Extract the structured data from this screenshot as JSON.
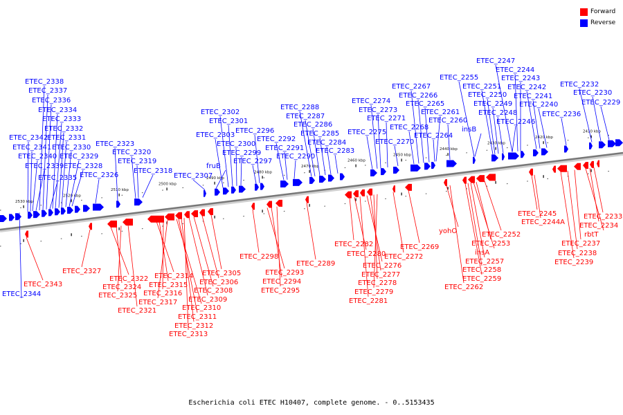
{
  "caption": "Escherichia coli ETEC H10407, complete genome. - 0..5153435",
  "legend": [
    {
      "label": "Forward",
      "color": "#ff0000"
    },
    {
      "label": "Reverse",
      "color": "#0000ff"
    }
  ],
  "colors": {
    "forward": "#ff0000",
    "reverse": "#0000ff",
    "backbone": "#888888"
  },
  "ticks": [
    "2530 kbp",
    "2520 kbp",
    "2510 kbp",
    "2500 kbp",
    "2490 kbp",
    "2480 kbp",
    "2470 kbp",
    "2460 kbp",
    "2450 kbp",
    "2440 kbp",
    "2430 kbp",
    "2420 kbp",
    "2410 kbp"
  ],
  "genes_reverse": [
    "ETEC_2344",
    "ETEC_2342",
    "ETEC_2341",
    "ETEC_2340",
    "ETEC_2339",
    "ETEC_2338",
    "ETEC_2337",
    "ETEC_2336",
    "ETEC_2335",
    "ETEC_2334",
    "ETEC_2333",
    "ETEC_2332",
    "ETEC_2331",
    "ETEC_2330",
    "ETEC_2329",
    "ETEC_2328",
    "ETEC_2326",
    "ETEC_2323",
    "ETEC_2320",
    "ETEC_2319",
    "ETEC_2318",
    "ETEC_2307",
    "fruB",
    "ETEC_2303",
    "ETEC_2302",
    "ETEC_2301",
    "ETEC_2300",
    "ETEC_2299",
    "ETEC_2297",
    "ETEC_2296",
    "ETEC_2292",
    "ETEC_2291",
    "ETEC_2290",
    "ETEC_2288",
    "ETEC_2287",
    "ETEC_2286",
    "ETEC_2285",
    "ETEC_2284",
    "ETEC_2283",
    "ETEC_2275",
    "ETEC_2274",
    "ETEC_2273",
    "ETEC_2271",
    "ETEC_2270",
    "ETEC_2268",
    "ETEC_2267",
    "ETEC_2266",
    "ETEC_2265",
    "ETEC_2264",
    "ETEC_2261",
    "ETEC_2260",
    "ETEC_2255",
    "insB",
    "ETEC_2251",
    "ETEC_2250",
    "ETEC_2249",
    "ETEC_2248",
    "ETEC_2247",
    "ETEC_2244",
    "ETEC_2243",
    "ETEC_2242",
    "ETEC_2241",
    "ETEC_2240",
    "ETEC_2246",
    "ETEC_2236",
    "ETEC_2232",
    "ETEC_2230",
    "ETEC_2229"
  ],
  "genes_forward": [
    "ETEC_2343",
    "ETEC_2327",
    "ETEC_2322",
    "ETEC_2324",
    "ETEC_2325",
    "ETEC_2321",
    "ETEC_2314",
    "ETEC_2315",
    "ETEC_2316",
    "ETEC_2317",
    "ETEC_2310",
    "ETEC_2311",
    "ETEC_2312",
    "ETEC_2313",
    "ETEC_2309",
    "ETEC_2308",
    "ETEC_2306",
    "ETEC_2305",
    "ETEC_2298",
    "ETEC_2293",
    "ETEC_2294",
    "ETEC_2295",
    "ETEC_2289",
    "ETEC_2282",
    "ETEC_2280",
    "ETEC_2276",
    "ETEC_2277",
    "ETEC_2278",
    "ETEC_2279",
    "ETEC_2281",
    "ETEC_2272",
    "ETEC_2269",
    "yohO",
    "ETEC_2262",
    "ETEC_2259",
    "ETEC_2258",
    "ETEC_2257",
    "insA",
    "ETEC_2253",
    "ETEC_2252",
    "ETEC_2245",
    "ETEC_2244A",
    "ETEC_2233",
    "ETEC_2234",
    "rbtT",
    "ETEC_2237",
    "ETEC_2238",
    "ETEC_2239"
  ]
}
